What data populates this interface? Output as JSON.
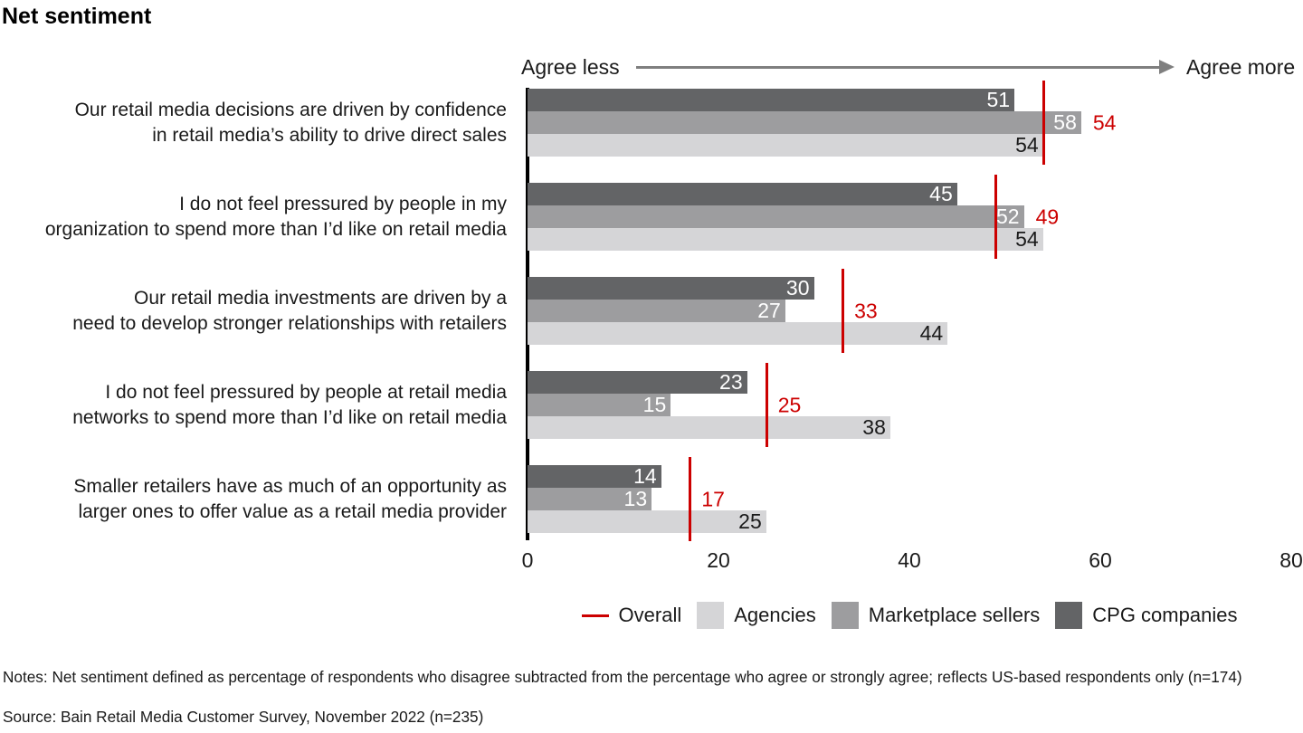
{
  "title": "Net sentiment",
  "axis_annotation": {
    "left_label": "Agree less",
    "right_label": "Agree more"
  },
  "chart_data": {
    "type": "bar",
    "orientation": "horizontal",
    "xlim": [
      0,
      80
    ],
    "x_ticks": [
      0,
      20,
      40,
      60,
      80
    ],
    "grid": "off",
    "legend_position": "bottom-center",
    "categories": [
      "Our retail media decisions are driven by confidence in retail media’s ability to drive direct sales",
      "I do not feel pressured by people in my organization to spend more than I’d like on retail media",
      "Our retail media investments are driven by a need to develop stronger relationships with retailers",
      "I do not feel pressured by people at retail media networks to spend more than I’d like on retail media",
      "Smaller retailers have as much of an opportunity as larger ones to offer value as a retail media provider"
    ],
    "category_lines": [
      [
        "Our retail media decisions are driven by confidence",
        "in retail media’s ability to drive direct sales"
      ],
      [
        "I do not feel pressured by people in my",
        "organization to spend more than I’d like on retail media"
      ],
      [
        "Our retail media investments are driven by a",
        "need to develop stronger relationships with retailers"
      ],
      [
        "I do not feel pressured by people at retail media",
        "networks to spend more than I’d like on retail media"
      ],
      [
        "Smaller retailers have as much of an opportunity as",
        "larger ones to offer value as a retail media provider"
      ]
    ],
    "series": [
      {
        "name": "CPG companies",
        "color": "#636466",
        "label_color": "#ffffff",
        "values": [
          51,
          45,
          30,
          23,
          14
        ]
      },
      {
        "name": "Marketplace sellers",
        "color": "#9d9d9f",
        "label_color": "#ffffff",
        "values": [
          58,
          52,
          27,
          15,
          13
        ]
      },
      {
        "name": "Agencies",
        "color": "#d5d5d7",
        "label_color": "#1a1a1a",
        "values": [
          54,
          54,
          44,
          38,
          25
        ]
      }
    ],
    "overall": {
      "name": "Overall",
      "color": "#cc0000",
      "values": [
        54,
        49,
        33,
        25,
        17
      ]
    },
    "legend": [
      {
        "label": "Overall",
        "marker": "line",
        "color": "#cc0000"
      },
      {
        "label": "Agencies",
        "marker": "square",
        "color": "#d5d5d7"
      },
      {
        "label": "Marketplace sellers",
        "marker": "square",
        "color": "#9d9d9f"
      },
      {
        "label": "CPG companies",
        "marker": "square",
        "color": "#636466"
      }
    ]
  },
  "colors": {
    "overall_red": "#cc0000",
    "axis_black": "#000000",
    "arrow_gray": "#7f7f7f"
  },
  "notes": "Notes: Net sentiment defined as percentage of respondents who disagree subtracted from the percentage who agree or strongly agree; reflects US-based respondents only (n=174)",
  "source": "Source: Bain Retail Media Customer Survey, November 2022 (n=235)"
}
